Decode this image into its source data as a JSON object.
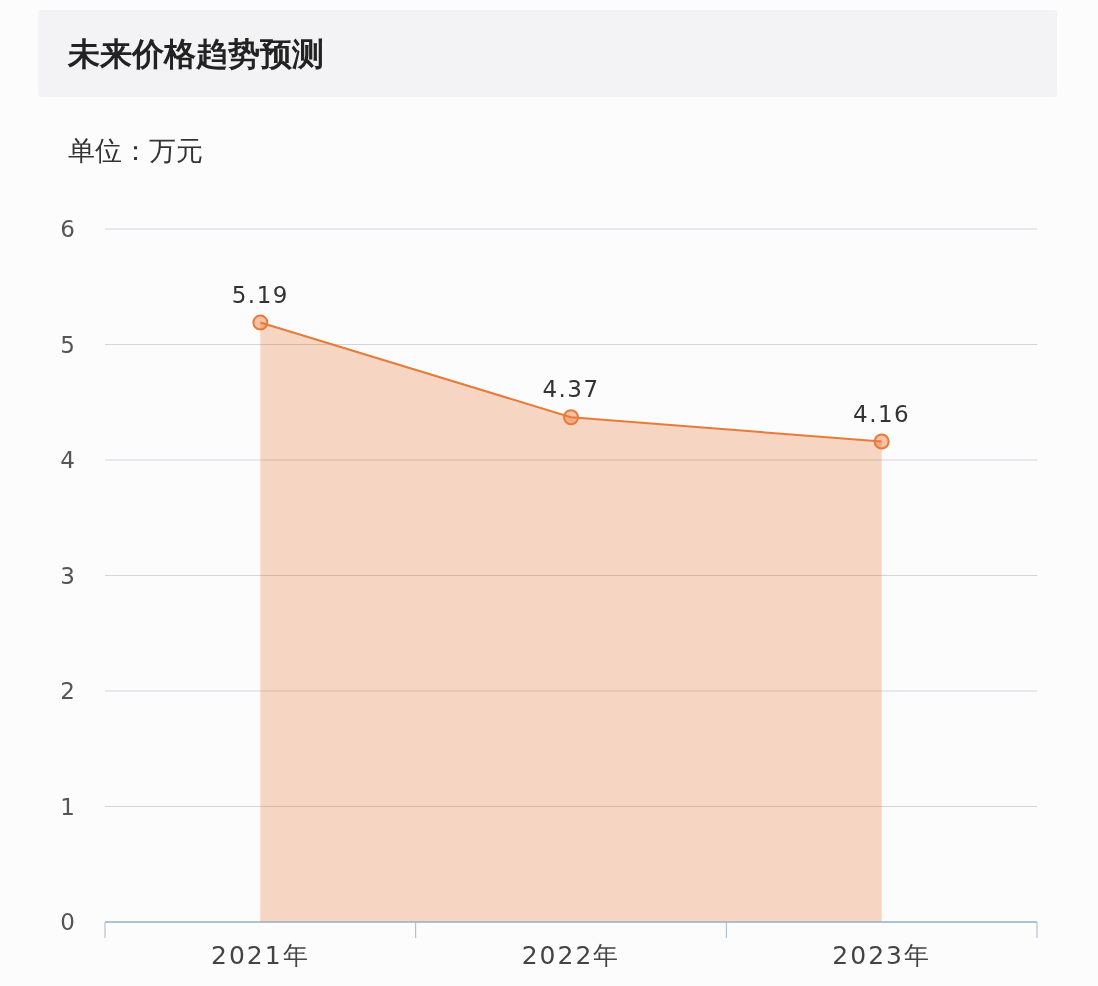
{
  "chart_data": {
    "type": "area",
    "title": "未来价格趋势预测",
    "ylabel": "单位：万元",
    "categories": [
      "2021年",
      "2022年",
      "2023年"
    ],
    "values": [
      5.19,
      4.37,
      4.16
    ],
    "color": "#e87a3a",
    "ylim": [
      0,
      6
    ],
    "yticks": [
      0,
      1,
      2,
      3,
      4,
      5,
      6
    ],
    "grid": "y",
    "marker": "circle",
    "data_labels": true
  }
}
